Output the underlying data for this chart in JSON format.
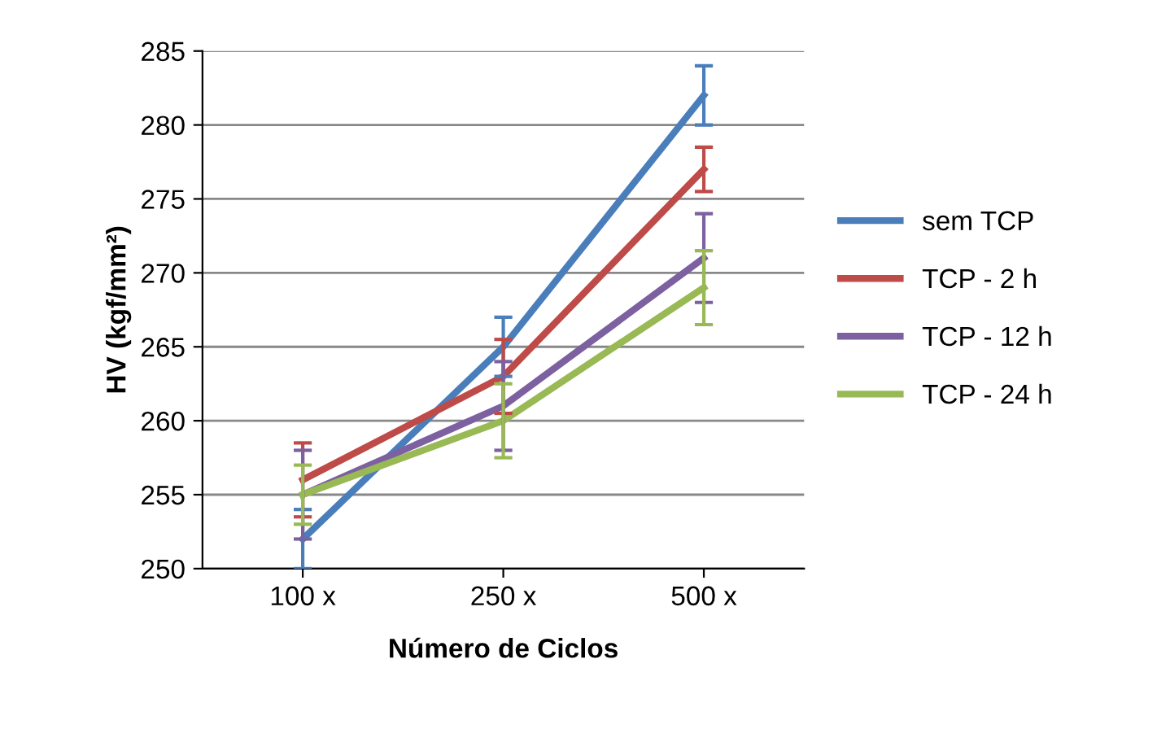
{
  "chart_data": {
    "type": "line",
    "xlabel": "Número de Ciclos",
    "ylabel": "HV (kgf/mm²)",
    "categories": [
      "100 x",
      "250 x",
      "500 x"
    ],
    "ylim": [
      250,
      285
    ],
    "yticks": [
      250,
      255,
      260,
      265,
      270,
      275,
      280,
      285
    ],
    "grid": "y",
    "legend": "right",
    "marker": "none",
    "line_style": "solid",
    "series": [
      {
        "name": "sem TCP",
        "color": "#4a7ebb",
        "values": [
          252,
          265,
          282
        ],
        "errors": [
          2,
          2,
          2
        ]
      },
      {
        "name": "TCP - 2 h",
        "color": "#be4b48",
        "values": [
          256,
          263,
          277
        ],
        "errors": [
          2.5,
          2.5,
          1.5
        ]
      },
      {
        "name": "TCP - 12 h",
        "color": "#7d60a0",
        "values": [
          255,
          261,
          271
        ],
        "errors": [
          3,
          3,
          3
        ]
      },
      {
        "name": "TCP - 24 h",
        "color": "#98b954",
        "values": [
          255,
          260,
          269
        ],
        "errors": [
          2,
          2.5,
          2.5
        ]
      }
    ]
  }
}
